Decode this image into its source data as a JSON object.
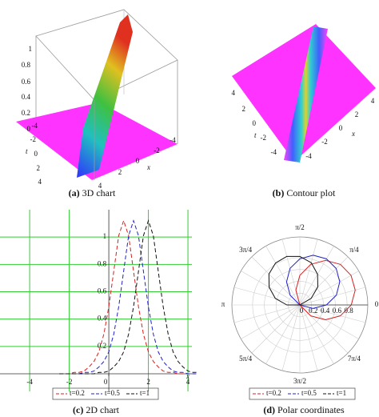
{
  "figure": {
    "a": {
      "caption_label": "(a)",
      "caption": "3D chart",
      "z_ticks": [
        0,
        0.2,
        0.4,
        0.6,
        0.8,
        1
      ],
      "t_ticks": [
        -4,
        -2,
        0,
        2,
        4
      ],
      "x_ticks": [
        4,
        2,
        0,
        -2,
        -4
      ],
      "t_label": "t",
      "x_label": "x"
    },
    "b": {
      "caption_label": "(b)",
      "caption": "Contour plot",
      "t_ticks": [
        4,
        2,
        0,
        -2,
        -4
      ],
      "x_ticks": [
        -4,
        -2,
        0,
        2,
        4
      ],
      "t_label": "t",
      "x_label": "x"
    }
  },
  "chart_data": [
    {
      "type": "line",
      "caption_label": "(c)",
      "caption": "2D chart",
      "x_label": "x",
      "x": [
        -2.5,
        -2.25,
        -2,
        -1.75,
        -1.5,
        -1.25,
        -1,
        -0.75,
        -0.5,
        -0.25,
        0,
        0.25,
        0.5,
        0.75,
        1,
        1.25,
        1.5,
        1.75,
        2,
        2.25,
        2.5,
        2.75,
        3,
        3.25,
        3.5,
        3.75,
        4,
        4.25,
        4.5
      ],
      "series": [
        {
          "name": "t=0.2",
          "color": "#d62020",
          "values": [
            0,
            0,
            0,
            0.01,
            0.01,
            0.02,
            0.05,
            0.09,
            0.16,
            0.29,
            0.49,
            0.75,
            1.01,
            1.12,
            1.01,
            0.75,
            0.49,
            0.29,
            0.16,
            0.09,
            0.05,
            0.02,
            0.01,
            0.01,
            0,
            0,
            0,
            0,
            0
          ]
        },
        {
          "name": "t=0.5",
          "color": "#2020c8",
          "values": [
            0,
            0,
            0,
            0,
            0,
            0.01,
            0.01,
            0.02,
            0.05,
            0.09,
            0.16,
            0.29,
            0.49,
            0.75,
            1.01,
            1.12,
            1.01,
            0.75,
            0.49,
            0.29,
            0.16,
            0.09,
            0.05,
            0.02,
            0.01,
            0.01,
            0,
            0,
            0
          ]
        },
        {
          "name": "t=1",
          "color": "#111111",
          "values": [
            0,
            0,
            0,
            0,
            0,
            0,
            0,
            0,
            0.01,
            0.01,
            0.02,
            0.05,
            0.09,
            0.16,
            0.29,
            0.49,
            0.75,
            1.01,
            1.12,
            1.01,
            0.75,
            0.49,
            0.29,
            0.16,
            0.09,
            0.05,
            0.02,
            0.01,
            0.01
          ]
        }
      ],
      "xlim": [
        -5.5,
        4.2
      ],
      "ylim": [
        0,
        1.2
      ],
      "xticks": [
        -4,
        -2,
        0,
        2,
        4
      ],
      "yticks": [
        0.2,
        0.4,
        0.6,
        0.8,
        1
      ],
      "grid": true,
      "grid_color": "#33cc33",
      "legend": "bottom"
    },
    {
      "type": "polar",
      "caption_label": "(d)",
      "caption": "Polar coordinates",
      "series": [
        {
          "name": "t=0.2",
          "color": "#d62020",
          "theta": [
            -60,
            -45,
            -30,
            -15,
            0,
            15,
            30,
            45,
            60,
            75,
            90,
            105,
            120
          ],
          "r": [
            0,
            0.26,
            0.5,
            0.71,
            0.87,
            0.97,
            1,
            0.97,
            0.87,
            0.71,
            0.5,
            0.26,
            0
          ]
        },
        {
          "name": "t=0.5",
          "color": "#2020c8",
          "theta": [
            -30,
            -15,
            0,
            15,
            30,
            45,
            60,
            75,
            90,
            105,
            120,
            135,
            150
          ],
          "r": [
            0,
            0.23,
            0.45,
            0.64,
            0.78,
            0.87,
            0.9,
            0.87,
            0.78,
            0.64,
            0.45,
            0.23,
            0
          ]
        },
        {
          "name": "t=1",
          "color": "#111111",
          "theta": [
            15,
            30,
            45,
            60,
            75,
            90,
            105,
            120,
            135,
            150,
            165,
            180,
            195
          ],
          "r": [
            0,
            0.22,
            0.43,
            0.6,
            0.74,
            0.82,
            0.85,
            0.82,
            0.74,
            0.6,
            0.43,
            0.22,
            0
          ]
        }
      ],
      "rlim": [
        0,
        1.15
      ],
      "rticks": [
        0,
        0.2,
        0.4,
        0.6,
        0.8
      ],
      "theta_ticks": [
        0,
        {
          "value": 45,
          "label": "π/4"
        },
        {
          "value": 90,
          "label": "π/2"
        },
        {
          "value": 135,
          "label": "3π/4"
        },
        {
          "value": 180,
          "label": "π"
        },
        {
          "value": 225,
          "label": "5π/4"
        },
        {
          "value": 270,
          "label": "3π/2"
        },
        {
          "value": 315,
          "label": "7π/4"
        }
      ],
      "legend": "bottom"
    }
  ]
}
